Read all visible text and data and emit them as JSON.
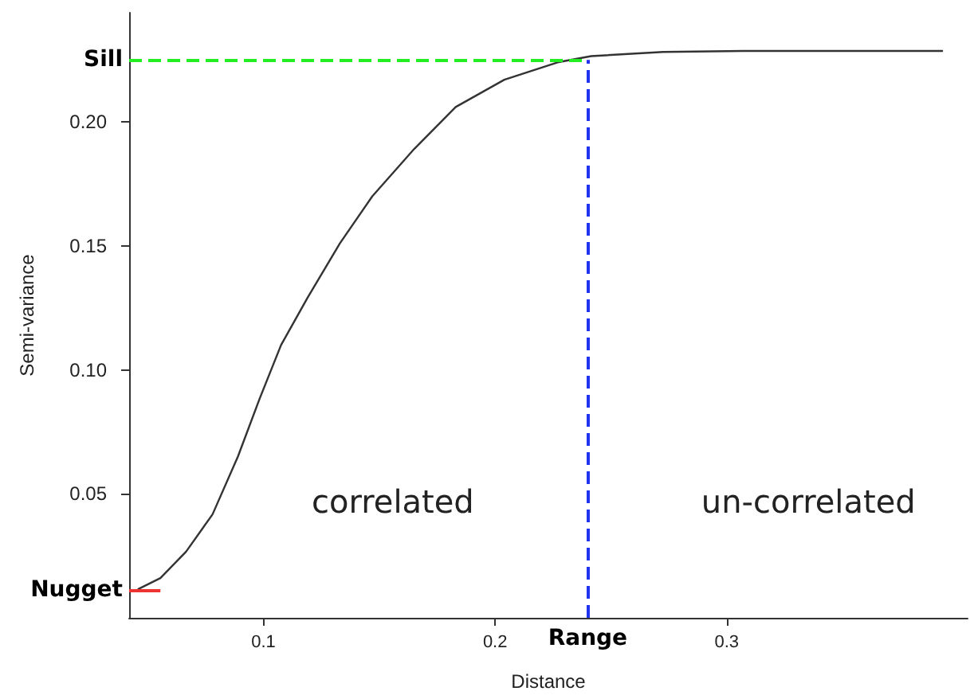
{
  "chart_data": {
    "type": "line",
    "xlabel": "Distance",
    "ylabel": "Semi-variance",
    "xlim": [
      0.042,
      0.404
    ],
    "ylim": [
      0,
      0.244
    ],
    "xticks": [
      0.1,
      0.2,
      0.3
    ],
    "yticks": [
      0.05,
      {
        "value": 0.1,
        "label": "0.10"
      },
      0.15,
      {
        "value": 0.2,
        "label": "0.20"
      }
    ],
    "x": [
      0.046,
      0.0555,
      0.0666,
      0.078,
      0.089,
      0.0984,
      0.1076,
      0.119,
      0.133,
      0.147,
      0.165,
      0.183,
      0.204,
      0.227,
      0.2415,
      0.2725,
      0.307,
      0.393
    ],
    "series": [
      {
        "color": "#333333",
        "values": [
          0.0116,
          0.016,
          0.0267,
          0.0417,
          0.0651,
          0.0885,
          0.11,
          0.129,
          0.151,
          0.17,
          0.189,
          0.206,
          0.217,
          0.224,
          0.2265,
          0.2282,
          0.2286,
          0.2286
        ]
      }
    ],
    "ref_lines": [
      {
        "axis": "y",
        "value": 0.225,
        "label": "Sill",
        "color": "#22ee22",
        "line_style": "dashed"
      },
      {
        "axis": "y",
        "value": 0.0113,
        "label": "Nugget",
        "color": "#ee3333",
        "line_style": "solid"
      },
      {
        "axis": "x",
        "value": 0.24,
        "label": "Range",
        "color": "#2233ee",
        "line_style": "dashed"
      }
    ],
    "annotations": [
      "correlated",
      "un-correlated"
    ],
    "grid": false,
    "marker": "none",
    "line_style": "solid"
  }
}
